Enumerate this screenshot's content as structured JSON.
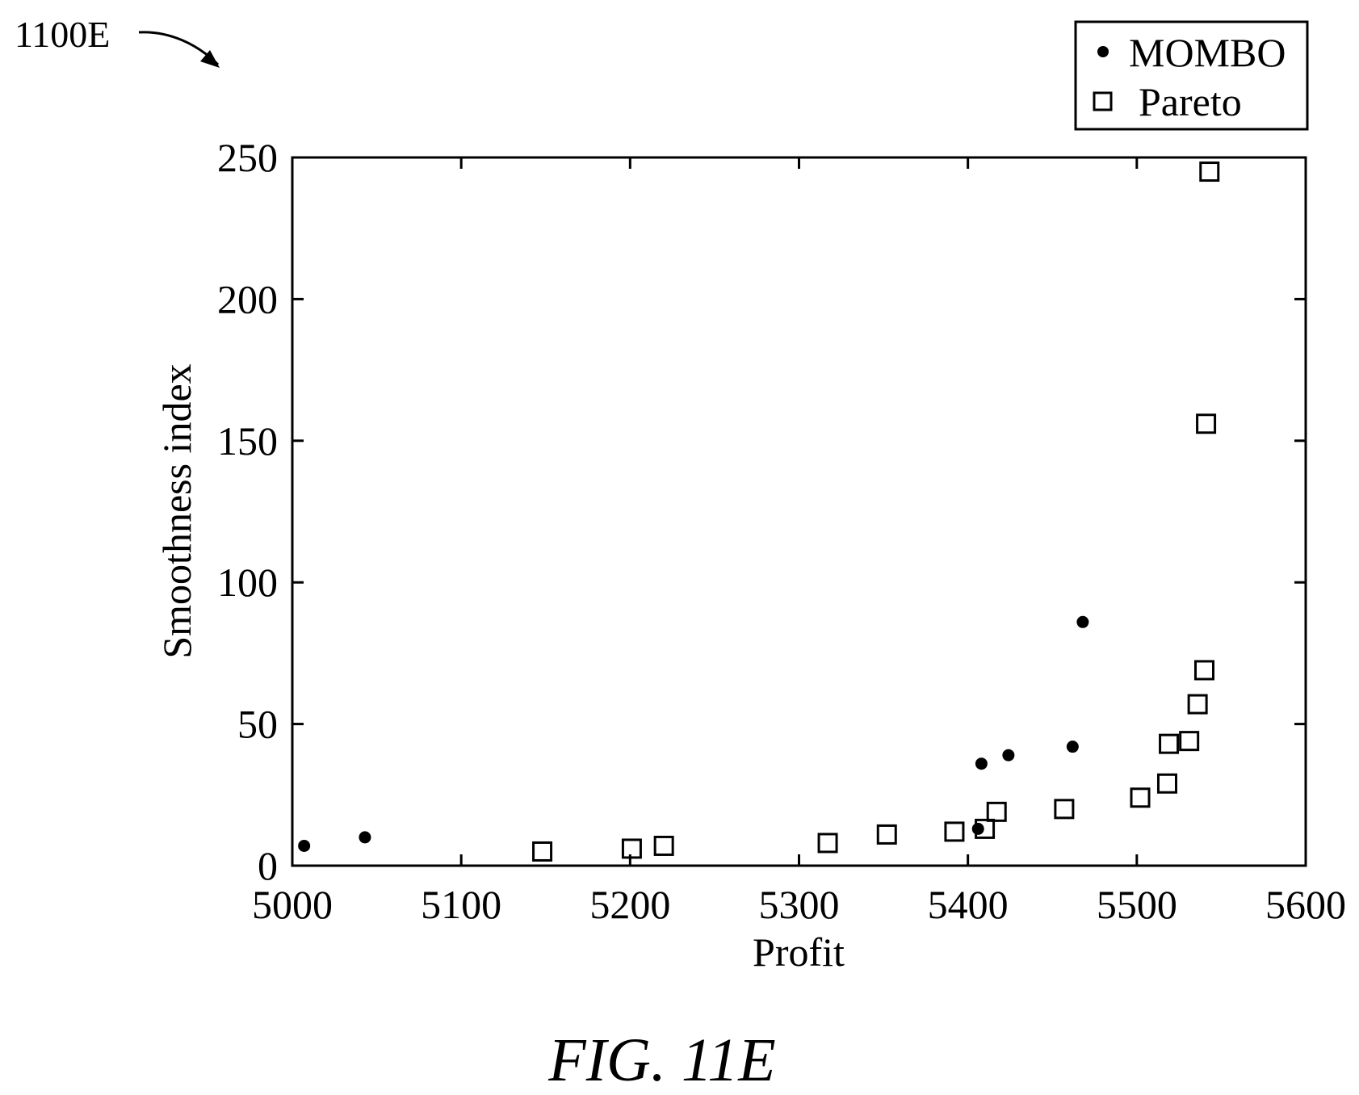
{
  "figure": {
    "reference_label": "1100E",
    "caption": "FIG. 11E"
  },
  "chart_data": {
    "type": "scatter",
    "xlabel": "Profit",
    "ylabel": "Smoothness index",
    "xlim": [
      5000,
      5600
    ],
    "ylim": [
      0,
      250
    ],
    "xticks": [
      5000,
      5100,
      5200,
      5300,
      5400,
      5500,
      5600
    ],
    "yticks": [
      0,
      50,
      100,
      150,
      200,
      250
    ],
    "grid": false,
    "legend_position": "top-right, outside plot area",
    "series": [
      {
        "name": "MOMBO",
        "marker": "filled-circle",
        "color": "#000000",
        "points": [
          {
            "x": 5007,
            "y": 7
          },
          {
            "x": 5043,
            "y": 10
          },
          {
            "x": 5406,
            "y": 13
          },
          {
            "x": 5408,
            "y": 36
          },
          {
            "x": 5424,
            "y": 39
          },
          {
            "x": 5462,
            "y": 42
          },
          {
            "x": 5468,
            "y": 86
          }
        ]
      },
      {
        "name": "Pareto",
        "marker": "open-square",
        "color": "#000000",
        "points": [
          {
            "x": 5148,
            "y": 5
          },
          {
            "x": 5201,
            "y": 6
          },
          {
            "x": 5220,
            "y": 7
          },
          {
            "x": 5317,
            "y": 8
          },
          {
            "x": 5352,
            "y": 11
          },
          {
            "x": 5392,
            "y": 12
          },
          {
            "x": 5410,
            "y": 13
          },
          {
            "x": 5417,
            "y": 19
          },
          {
            "x": 5457,
            "y": 20
          },
          {
            "x": 5502,
            "y": 24
          },
          {
            "x": 5518,
            "y": 29
          },
          {
            "x": 5519,
            "y": 43
          },
          {
            "x": 5531,
            "y": 44
          },
          {
            "x": 5536,
            "y": 57
          },
          {
            "x": 5540,
            "y": 69
          },
          {
            "x": 5541,
            "y": 156
          },
          {
            "x": 5543,
            "y": 245
          }
        ]
      }
    ]
  }
}
